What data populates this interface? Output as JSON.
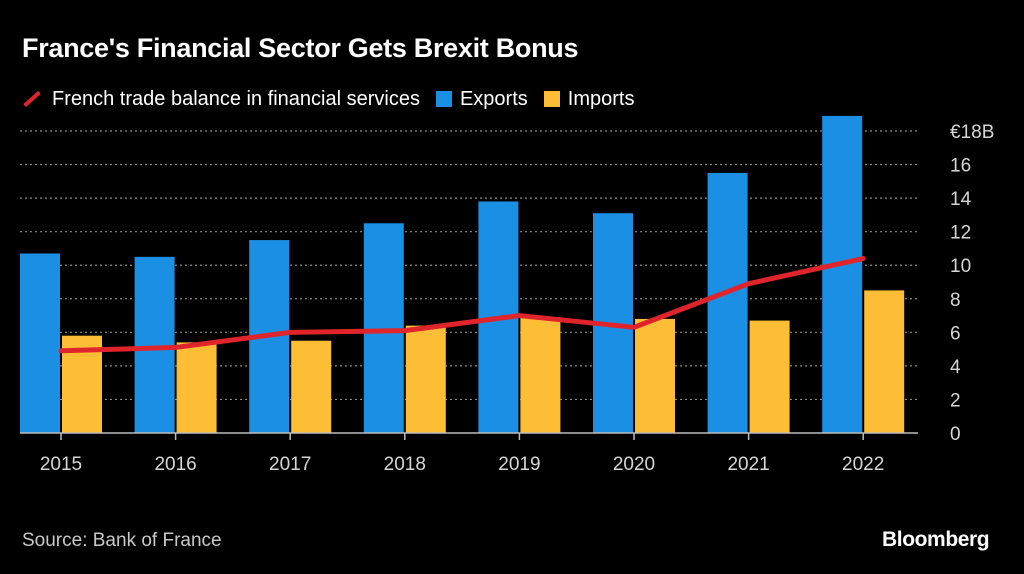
{
  "chart_data": {
    "type": "bar",
    "title": "France's Financial Sector Gets Brexit Bonus",
    "categories": [
      "2015",
      "2016",
      "2017",
      "2018",
      "2019",
      "2020",
      "2021",
      "2022"
    ],
    "series": [
      {
        "name": "Exports",
        "kind": "bar",
        "color": "#1a8fe3",
        "values": [
          10.7,
          10.5,
          11.5,
          12.5,
          13.8,
          13.1,
          15.5,
          18.9
        ]
      },
      {
        "name": "Imports",
        "kind": "bar",
        "color": "#fdbe35",
        "values": [
          5.8,
          5.4,
          5.5,
          6.4,
          6.9,
          6.8,
          6.7,
          8.5
        ]
      },
      {
        "name": "French trade balance in financial services",
        "kind": "line",
        "color": "#e0242b",
        "values": [
          4.9,
          5.1,
          6.0,
          6.1,
          7.0,
          6.3,
          8.9,
          10.4
        ]
      }
    ],
    "ylim": [
      0,
      18
    ],
    "yticks": [
      0,
      2,
      4,
      6,
      8,
      10,
      12,
      14,
      16,
      18
    ],
    "ytick_labels": [
      "0",
      "2",
      "4",
      "6",
      "8",
      "10",
      "12",
      "14",
      "16",
      "€18B"
    ],
    "xlabel": "",
    "ylabel": "",
    "grid": true,
    "legend_position": "top-left"
  },
  "legend": {
    "balance_label": "French trade balance in financial services",
    "exports_label": "Exports",
    "imports_label": "Imports"
  },
  "footer": {
    "source": "Source: Bank of France",
    "brand": "Bloomberg"
  },
  "colors": {
    "background": "#000000",
    "exports": "#1a8fe3",
    "imports": "#fdbe35",
    "balance": "#e0242b",
    "grid": "#8a8a8a"
  }
}
